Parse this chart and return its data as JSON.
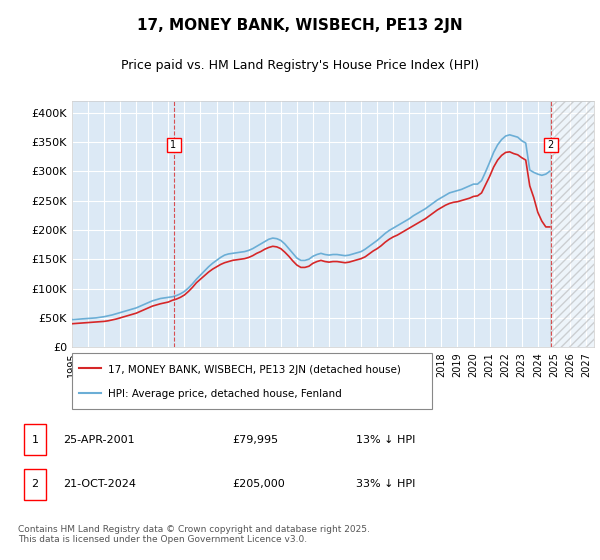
{
  "title": "17, MONEY BANK, WISBECH, PE13 2JN",
  "subtitle": "Price paid vs. HM Land Registry's House Price Index (HPI)",
  "ylabel": "",
  "bg_color": "#dce9f5",
  "plot_bg_color": "#dce9f5",
  "hpi_color": "#6baed6",
  "price_color": "#d62728",
  "ylim": [
    0,
    420000
  ],
  "yticks": [
    0,
    50000,
    100000,
    150000,
    200000,
    250000,
    300000,
    350000,
    400000
  ],
  "ytick_labels": [
    "£0",
    "£50K",
    "£100K",
    "£150K",
    "£200K",
    "£250K",
    "£300K",
    "£350K",
    "£400K"
  ],
  "xlim_start": 1995.0,
  "xlim_end": 2027.5,
  "marker1_x": 2001.32,
  "marker1_y": 79995,
  "marker1_label": "1",
  "marker2_x": 2024.8,
  "marker2_y": 205000,
  "marker2_label": "2",
  "legend_line1": "17, MONEY BANK, WISBECH, PE13 2JN (detached house)",
  "legend_line2": "HPI: Average price, detached house, Fenland",
  "annotation1": "1   25-APR-2001         £79,995         13% ↓ HPI",
  "annotation2": "2   21-OCT-2024         £205,000       33% ↓ HPI",
  "footer": "Contains HM Land Registry data © Crown copyright and database right 2025.\nThis data is licensed under the Open Government Licence v3.0.",
  "hpi_data_x": [
    1995.0,
    1995.25,
    1995.5,
    1995.75,
    1996.0,
    1996.25,
    1996.5,
    1996.75,
    1997.0,
    1997.25,
    1997.5,
    1997.75,
    1998.0,
    1998.25,
    1998.5,
    1998.75,
    1999.0,
    1999.25,
    1999.5,
    1999.75,
    2000.0,
    2000.25,
    2000.5,
    2000.75,
    2001.0,
    2001.25,
    2001.5,
    2001.75,
    2002.0,
    2002.25,
    2002.5,
    2002.75,
    2003.0,
    2003.25,
    2003.5,
    2003.75,
    2004.0,
    2004.25,
    2004.5,
    2004.75,
    2005.0,
    2005.25,
    2005.5,
    2005.75,
    2006.0,
    2006.25,
    2006.5,
    2006.75,
    2007.0,
    2007.25,
    2007.5,
    2007.75,
    2008.0,
    2008.25,
    2008.5,
    2008.75,
    2009.0,
    2009.25,
    2009.5,
    2009.75,
    2010.0,
    2010.25,
    2010.5,
    2010.75,
    2011.0,
    2011.25,
    2011.5,
    2011.75,
    2012.0,
    2012.25,
    2012.5,
    2012.75,
    2013.0,
    2013.25,
    2013.5,
    2013.75,
    2014.0,
    2014.25,
    2014.5,
    2014.75,
    2015.0,
    2015.25,
    2015.5,
    2015.75,
    2016.0,
    2016.25,
    2016.5,
    2016.75,
    2017.0,
    2017.25,
    2017.5,
    2017.75,
    2018.0,
    2018.25,
    2018.5,
    2018.75,
    2019.0,
    2019.25,
    2019.5,
    2019.75,
    2020.0,
    2020.25,
    2020.5,
    2020.75,
    2021.0,
    2021.25,
    2021.5,
    2021.75,
    2022.0,
    2022.25,
    2022.5,
    2022.75,
    2023.0,
    2023.25,
    2023.5,
    2023.75,
    2024.0,
    2024.25,
    2024.5,
    2024.75
  ],
  "hpi_data_y": [
    47000,
    47500,
    48000,
    48500,
    49000,
    49500,
    50000,
    51000,
    52000,
    53500,
    55000,
    57000,
    59000,
    61000,
    63000,
    65000,
    67000,
    70000,
    73000,
    76000,
    79000,
    81000,
    83000,
    84000,
    85000,
    86000,
    88000,
    91000,
    95000,
    101000,
    108000,
    116000,
    123000,
    130000,
    137000,
    143000,
    148000,
    153000,
    157000,
    159000,
    160000,
    161000,
    162000,
    163000,
    165000,
    168000,
    172000,
    176000,
    180000,
    184000,
    186000,
    185000,
    182000,
    176000,
    168000,
    160000,
    152000,
    148000,
    148000,
    150000,
    155000,
    158000,
    160000,
    158000,
    157000,
    158000,
    158000,
    157000,
    156000,
    157000,
    159000,
    161000,
    163000,
    167000,
    172000,
    177000,
    182000,
    188000,
    194000,
    199000,
    203000,
    207000,
    211000,
    215000,
    219000,
    224000,
    228000,
    232000,
    236000,
    241000,
    246000,
    251000,
    255000,
    259000,
    263000,
    265000,
    267000,
    269000,
    272000,
    275000,
    278000,
    278000,
    284000,
    299000,
    315000,
    332000,
    345000,
    354000,
    360000,
    362000,
    360000,
    358000,
    352000,
    348000,
    302000,
    298000,
    295000,
    293000,
    295000,
    300000
  ],
  "price_data_x": [
    1995.0,
    1995.25,
    1995.5,
    1995.75,
    1996.0,
    1996.25,
    1996.5,
    1996.75,
    1997.0,
    1997.25,
    1997.5,
    1997.75,
    1998.0,
    1998.25,
    1998.5,
    1998.75,
    1999.0,
    1999.25,
    1999.5,
    1999.75,
    2000.0,
    2000.25,
    2000.5,
    2000.75,
    2001.0,
    2001.25,
    2001.5,
    2001.75,
    2002.0,
    2002.25,
    2002.5,
    2002.75,
    2003.0,
    2003.25,
    2003.5,
    2003.75,
    2004.0,
    2004.25,
    2004.5,
    2004.75,
    2005.0,
    2005.25,
    2005.5,
    2005.75,
    2006.0,
    2006.25,
    2006.5,
    2006.75,
    2007.0,
    2007.25,
    2007.5,
    2007.75,
    2008.0,
    2008.25,
    2008.5,
    2008.75,
    2009.0,
    2009.25,
    2009.5,
    2009.75,
    2010.0,
    2010.25,
    2010.5,
    2010.75,
    2011.0,
    2011.25,
    2011.5,
    2011.75,
    2012.0,
    2012.25,
    2012.5,
    2012.75,
    2013.0,
    2013.25,
    2013.5,
    2013.75,
    2014.0,
    2014.25,
    2014.5,
    2014.75,
    2015.0,
    2015.25,
    2015.5,
    2015.75,
    2016.0,
    2016.25,
    2016.5,
    2016.75,
    2017.0,
    2017.25,
    2017.5,
    2017.75,
    2018.0,
    2018.25,
    2018.5,
    2018.75,
    2019.0,
    2019.25,
    2019.5,
    2019.75,
    2020.0,
    2020.25,
    2020.5,
    2020.75,
    2021.0,
    2021.25,
    2021.5,
    2021.75,
    2022.0,
    2022.25,
    2022.5,
    2022.75,
    2023.0,
    2023.25,
    2023.5,
    2023.75,
    2024.0,
    2024.25,
    2024.5,
    2024.75
  ],
  "price_data_y": [
    40000,
    40500,
    41000,
    41500,
    42000,
    42500,
    43000,
    43500,
    44000,
    45000,
    46500,
    48000,
    50000,
    52000,
    54000,
    56000,
    58000,
    61000,
    64000,
    67000,
    70000,
    72000,
    74000,
    75500,
    77000,
    79995,
    82000,
    85000,
    89000,
    95000,
    102000,
    110000,
    116000,
    122000,
    128000,
    133000,
    137000,
    141000,
    144000,
    146000,
    148000,
    149000,
    150000,
    151000,
    153000,
    156000,
    160000,
    163000,
    167000,
    170000,
    172000,
    171000,
    168000,
    162000,
    155000,
    147000,
    140000,
    136000,
    136000,
    138000,
    143000,
    146000,
    148000,
    146000,
    145000,
    146000,
    146000,
    145000,
    144000,
    145000,
    147000,
    149000,
    151000,
    154000,
    159000,
    164000,
    168000,
    173000,
    179000,
    184000,
    188000,
    191000,
    195000,
    199000,
    203000,
    207000,
    211000,
    215000,
    219000,
    224000,
    229000,
    234000,
    238000,
    242000,
    245000,
    247000,
    248000,
    250000,
    252000,
    254000,
    257000,
    258000,
    263000,
    277000,
    291000,
    307000,
    319000,
    327000,
    332000,
    333000,
    330000,
    328000,
    323000,
    319000,
    275000,
    255000,
    230000,
    215000,
    205000,
    205000
  ],
  "hatch_start_x": 2024.75,
  "xticks": [
    1995,
    1996,
    1997,
    1998,
    1999,
    2000,
    2001,
    2002,
    2003,
    2004,
    2005,
    2006,
    2007,
    2008,
    2009,
    2010,
    2011,
    2012,
    2013,
    2014,
    2015,
    2016,
    2017,
    2018,
    2019,
    2020,
    2021,
    2022,
    2023,
    2024,
    2025,
    2026,
    2027
  ]
}
